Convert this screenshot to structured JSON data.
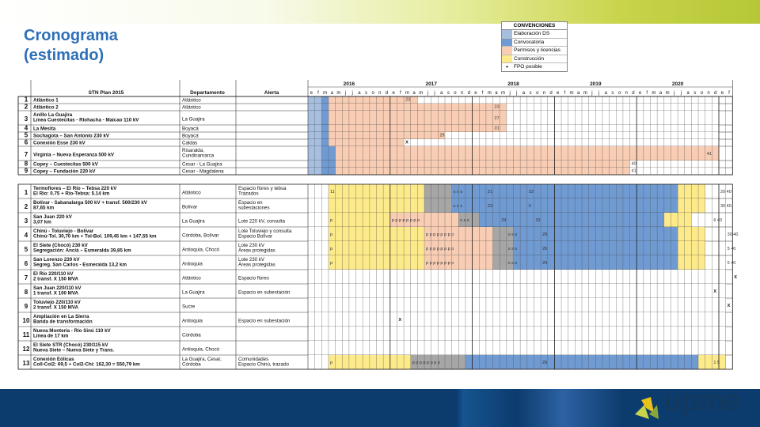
{
  "title": "Cronograma\n(estimado)",
  "colors": {
    "elaboracion_ds": "#a6bfdf",
    "convocatoria": "#6f9ad2",
    "permisos": "#f8cdb4",
    "construccion": "#fdea8a",
    "fpo": "#c7df9c",
    "stripe": "#a6a6a6",
    "header_accent": "#2e6fb8",
    "bottom_bar": "#0c3b6e"
  },
  "legend": {
    "header": "CONVENCIONES",
    "items": [
      {
        "label": "Elaboración DS",
        "color": "#a6bfdf"
      },
      {
        "label": "Convocatoria",
        "color": "#6f9ad2"
      },
      {
        "label": "Permisos y licencias",
        "color": "#f8cdb4"
      },
      {
        "label": "Construcción",
        "color": "#fdea8a"
      },
      {
        "label": "FPO posible",
        "color": "#ffffff",
        "dot": true
      }
    ]
  },
  "table": {
    "headers": {
      "col1": "STN Plan 2015",
      "col2": "Departamento",
      "col3": "Alerta"
    },
    "years": [
      "2016",
      "2017",
      "2018",
      "2019",
      "2020"
    ],
    "months": [
      "e",
      "f",
      "m",
      "a",
      "m",
      "j",
      "j",
      "a",
      "s",
      "o",
      "n",
      "d"
    ],
    "section1": [
      {
        "n": "1",
        "project": "Atlántico 1",
        "dept": "Atlántico",
        "status": [
          "D",
          2,
          "C",
          1,
          "P",
          13,
          "-",
          44
        ]
      },
      {
        "n": "2",
        "project": "Atlántico 2",
        "dept": "Atlántico",
        "status": [
          "D",
          2,
          "C",
          1,
          "P",
          26,
          "-",
          31
        ]
      },
      {
        "n": "3",
        "project": "Anillo La Guajira\nLínea Cuestecitas - Riohacha - Maicao 110 kV",
        "dept": "La Guajira",
        "status": [
          "D",
          2,
          "C",
          1,
          "P",
          26,
          "-",
          31
        ]
      },
      {
        "n": "4",
        "project": "La Mesita",
        "dept": "Boyacá",
        "status": [
          "D",
          2,
          "C",
          1,
          "P",
          26,
          "-",
          31
        ]
      },
      {
        "n": "5",
        "project": "Sochagota – San Antonio 230 kV",
        "dept": "Boyacá",
        "status": [
          "D",
          2,
          "C",
          1,
          "P",
          17,
          "-",
          40
        ]
      },
      {
        "n": "6",
        "project": "Conexión Esse 230 kV",
        "dept": "Caldas",
        "status": [
          "D",
          2,
          "C",
          1,
          "P",
          11,
          "-",
          46
        ]
      },
      {
        "n": "7",
        "project": "Virginia – Nueva Esperanza 500 kV",
        "dept": "Risaralda,\nCundinamarca",
        "status": [
          "D",
          2,
          "C",
          2,
          "P",
          56
        ]
      },
      {
        "n": "8",
        "project": "Copey – Cuestecitas 500 kV",
        "dept": "Cesar - La Guajira",
        "status": [
          "D",
          2,
          "C",
          2,
          "P",
          43,
          "-",
          13
        ]
      },
      {
        "n": "9",
        "project": "Copey – Fundación 220 kV",
        "dept": "Cesar - Magdalena",
        "status": [
          "D",
          2,
          "C",
          2,
          "P",
          43,
          "-",
          13
        ]
      }
    ],
    "section1_marks": [
      {
        "row": 0,
        "col": 14,
        "text": "23"
      },
      {
        "row": 1,
        "col": 27,
        "text": "23"
      },
      {
        "row": 2,
        "col": 27,
        "text": "27"
      },
      {
        "row": 3,
        "col": 27,
        "text": "31"
      },
      {
        "row": 4,
        "col": 19,
        "text": "29"
      },
      {
        "row": 5,
        "col": 14,
        "text": "X"
      },
      {
        "row": 6,
        "col": 58,
        "text": "41"
      },
      {
        "row": 7,
        "col": 47,
        "text": "40"
      },
      {
        "row": 8,
        "col": 47,
        "text": "41"
      }
    ],
    "section2": [
      {
        "n": "1",
        "project": "Termoflores – El Río – Tebsa 220 kV\nEl Río: 0.75 + Río-Tebsa: 5.14 km",
        "dept": "Atlántico",
        "alert": "Espacio flores y tebsa\nTrazados",
        "status": [
          "-",
          3,
          "F",
          14,
          "S",
          4,
          "C",
          33,
          "F",
          4
        ]
      },
      {
        "n": "2",
        "project": "Bolívar - Sabanalarga 500 kV + transf. 500/230 kV\n87,65 km",
        "dept": "Bolívar",
        "alert": "Espacio en\nsubestaciones",
        "status": [
          "-",
          3,
          "F",
          14,
          "S",
          4,
          "C",
          33,
          "F",
          4
        ]
      },
      {
        "n": "3",
        "project": "San Juan 220 kV\n3,07 km",
        "dept": "La Guajira",
        "alert": "Lote 220 kV, consulta",
        "status": [
          "-",
          3,
          "F",
          9,
          "P",
          10,
          "S",
          3,
          "C",
          27,
          "F",
          4
        ]
      },
      {
        "n": "4",
        "project": "Chinú - Toluviejo - Bolívar\nChinú-Tol. 30,70 km + Tol-Bol. 109,45 km + 147,55 km",
        "dept": "Córdoba, Bolívar",
        "alert": "Lote Toluviejo y consulta\nEspacio Bolívar",
        "status": [
          "-",
          3,
          "F",
          14,
          "P",
          10,
          "S",
          3,
          "C",
          24,
          "F",
          4
        ]
      },
      {
        "n": "5",
        "project": "El Siete (Chocó) 230 kV\nSegregación: Anciá – Esmeralda 39,85 km",
        "dept": "Antioquia, Chocó",
        "alert": "Lote 230 kV\nÁreas protegidas",
        "status": [
          "-",
          3,
          "F",
          14,
          "P",
          10,
          "S",
          3,
          "C",
          24,
          "F",
          4
        ]
      },
      {
        "n": "6",
        "project": "San Lorenzo 230 kV\nSegreg. San Carlos - Esmeralda 13,2 km",
        "dept": "Antioquia",
        "alert": "Lote 230 kV\nÁreas protegidas",
        "status": [
          "-",
          3,
          "F",
          14,
          "P",
          10,
          "S",
          3,
          "C",
          24,
          "F",
          4
        ]
      },
      {
        "n": "7",
        "project": "El Río 220/110 kV\n2 transf. X 150 MVA",
        "dept": "Atlántico",
        "alert": "Espacio flores",
        "status": [
          "-",
          61
        ]
      },
      {
        "n": "8",
        "project": "San Juan 220/110 kV\n1 transf. X 100 MVA",
        "dept": "La Guajira",
        "alert": "Espacio en subestación",
        "status": [
          "-",
          61
        ]
      },
      {
        "n": "9",
        "project": "Toluviejo 220/110 kV\n2 transf. X 150 MVA",
        "dept": "Sucre",
        "alert": "",
        "status": [
          "-",
          61
        ]
      },
      {
        "n": "10",
        "project": "Ampliación en La Sierra\nBanda de transformación",
        "dept": "Antioquia",
        "alert": "Espacio en subestación",
        "status": [
          "-",
          61
        ]
      },
      {
        "n": "11",
        "project": "Nueva Montería - Río Sinú 110 kV\nLínea de 17 km",
        "dept": "Córdoba",
        "alert": "",
        "status": [
          "-",
          61
        ]
      },
      {
        "n": "12",
        "project": "El Siete STR (Chocó) 230/115 kV\nNueva Siete – Nueva Siete y Trans.",
        "dept": "Antioquia, Chocó",
        "alert": "",
        "status": [
          "-",
          61
        ]
      },
      {
        "n": "13",
        "project": "Conexión Eólicas\nColl-Col2: 69,5 + Col2-Chi: 162,30 = 550,79 km",
        "dept": "La Guajira, Cesar,\nCórdoba",
        "alert": "Comunidades\nEspacio Chinú, trazado",
        "status": [
          "-",
          3,
          "F",
          12,
          "S",
          8,
          "C",
          34,
          "F",
          4
        ]
      }
    ],
    "section2_marks": [
      {
        "row": 0,
        "col": 3,
        "text": "11"
      },
      {
        "row": 0,
        "col": 21,
        "text": "s  s  s"
      },
      {
        "row": 0,
        "col": 26,
        "text": "21"
      },
      {
        "row": 0,
        "col": 32,
        "text": "22"
      },
      {
        "row": 0,
        "col": 60,
        "text": "29   40"
      },
      {
        "row": 1,
        "col": 21,
        "text": "s  s  s"
      },
      {
        "row": 1,
        "col": 26,
        "text": "23"
      },
      {
        "row": 1,
        "col": 32,
        "text": "5"
      },
      {
        "row": 1,
        "col": 60,
        "text": "30   40"
      },
      {
        "row": 2,
        "col": 3,
        "text": "p"
      },
      {
        "row": 2,
        "col": 12,
        "text": "p  p  p  p  p  p  p  p"
      },
      {
        "row": 2,
        "col": 22,
        "text": "s  s  s"
      },
      {
        "row": 2,
        "col": 28,
        "text": "29"
      },
      {
        "row": 2,
        "col": 33,
        "text": "33"
      },
      {
        "row": 2,
        "col": 59,
        "text": "6  40"
      },
      {
        "row": 3,
        "col": 3,
        "text": "p"
      },
      {
        "row": 3,
        "col": 17,
        "text": "p  p  p  p  p  p  p  p"
      },
      {
        "row": 3,
        "col": 29,
        "text": "s  s  s"
      },
      {
        "row": 3,
        "col": 34,
        "text": "29"
      },
      {
        "row": 3,
        "col": 61,
        "text": "30   40"
      },
      {
        "row": 4,
        "col": 3,
        "text": "p"
      },
      {
        "row": 4,
        "col": 17,
        "text": "p  p  p  p  p  p  p  p"
      },
      {
        "row": 4,
        "col": 29,
        "text": "s  s  s"
      },
      {
        "row": 4,
        "col": 34,
        "text": "29"
      },
      {
        "row": 4,
        "col": 61,
        "text": "5  40"
      },
      {
        "row": 5,
        "col": 3,
        "text": "p"
      },
      {
        "row": 5,
        "col": 17,
        "text": "p  p  p  p  p  p  p  p"
      },
      {
        "row": 5,
        "col": 29,
        "text": "s  s  s"
      },
      {
        "row": 5,
        "col": 34,
        "text": "29"
      },
      {
        "row": 5,
        "col": 61,
        "text": "5  40"
      },
      {
        "row": 6,
        "col": 62,
        "text": "X"
      },
      {
        "row": 7,
        "col": 59,
        "text": "X"
      },
      {
        "row": 8,
        "col": 61,
        "text": "X"
      },
      {
        "row": 9,
        "col": 13,
        "text": "X"
      },
      {
        "row": 12,
        "col": 3,
        "text": "p"
      },
      {
        "row": 12,
        "col": 15,
        "text": "p  p  p  p  p  p  p  p"
      },
      {
        "row": 12,
        "col": 34,
        "text": "29"
      },
      {
        "row": 12,
        "col": 59,
        "text": "1  5"
      }
    ]
  },
  "logo": {
    "text": "upme"
  }
}
